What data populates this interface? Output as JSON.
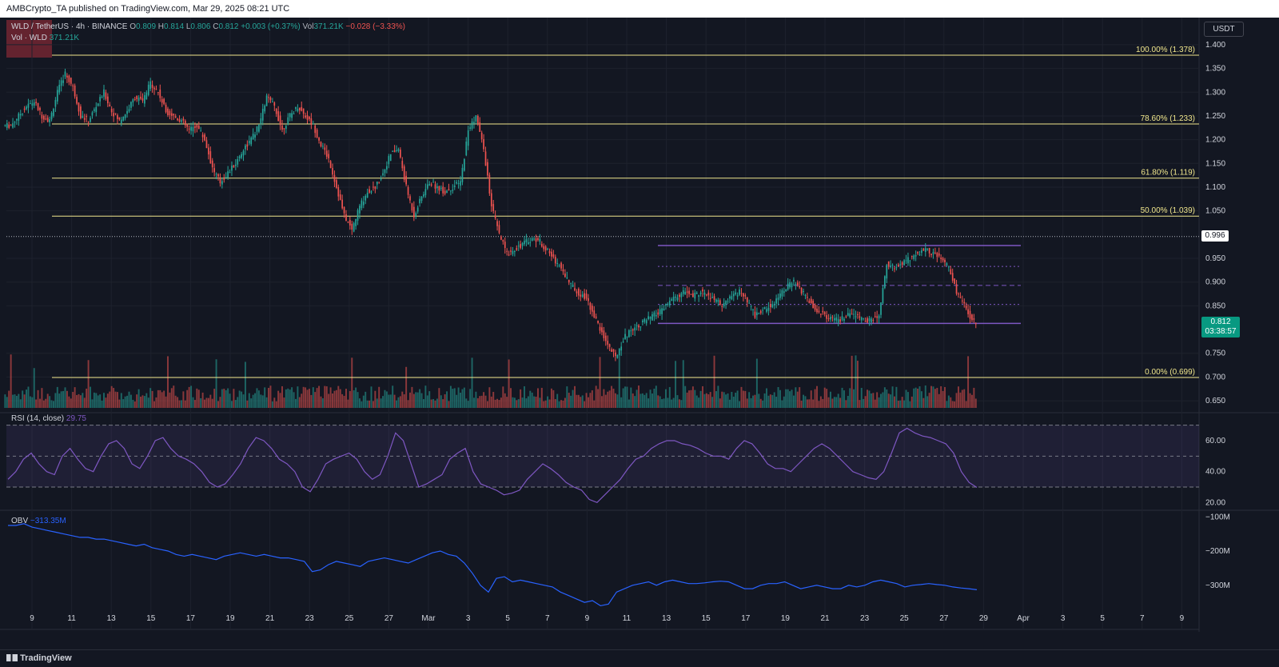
{
  "header": {
    "publisher": "AMBCrypto_TA published on TradingView.com, Mar 29, 2025 08:21 UTC"
  },
  "footer": {
    "brand": "TradingView"
  },
  "symbol_legend": {
    "pair": "WLD / TetherUS · 4h · BINANCE",
    "o_label": "O",
    "o": "0.809",
    "h_label": "H",
    "h": "0.814",
    "l_label": "L",
    "l": "0.806",
    "c_label": "C",
    "c": "0.812",
    "change": "+0.003 (+0.37%)",
    "vol_label": "Vol",
    "vol": "371.21K",
    "vol_change": "−0.028 (−3.33%)",
    "vol_series": "Vol · WLD",
    "vol_series_value": "371.21K"
  },
  "rsi_legend": {
    "name": "RSI (14, close)",
    "value": "29.75"
  },
  "obv_legend": {
    "name": "OBV",
    "value": "−313.35M"
  },
  "currency_badge": "USDT",
  "price_badges": {
    "marker": "0.996",
    "last_price": "0.812",
    "countdown": "03:38:57"
  },
  "colors": {
    "up": "#26a69a",
    "down": "#ef5350",
    "fib": "#f0e68c",
    "channel": "#7e57c2",
    "rsi": "#7e57c2",
    "obv": "#2962ff",
    "background": "#131722"
  },
  "chart_data": {
    "type": "candlestick",
    "x_ticks": [
      "9",
      "11",
      "13",
      "15",
      "17",
      "19",
      "21",
      "23",
      "25",
      "27",
      "Mar",
      "3",
      "5",
      "7",
      "9",
      "11",
      "13",
      "15",
      "17",
      "19",
      "21",
      "23",
      "25",
      "27",
      "29",
      "Apr",
      "3",
      "5",
      "7",
      "9"
    ],
    "price_ticks": [
      "1.400",
      "1.350",
      "1.300",
      "1.250",
      "1.200",
      "1.150",
      "1.100",
      "1.050",
      "0.950",
      "0.900",
      "0.850",
      "0.750",
      "0.700",
      "0.650"
    ],
    "price_range": [
      0.635,
      1.415
    ],
    "fib_levels": [
      {
        "label": "100.00% (1.378)",
        "value": 1.378
      },
      {
        "label": "78.60% (1.233)",
        "value": 1.233
      },
      {
        "label": "61.80% (1.119)",
        "value": 1.119
      },
      {
        "label": "50.00% (1.039)",
        "value": 1.039
      },
      {
        "label": "0.00% (0.699)",
        "value": 0.699
      }
    ],
    "marker_line": 0.996,
    "channel": {
      "top": 0.977,
      "upper_dotted": 0.933,
      "upper_mid": 0.893,
      "lower_dotted": 0.853,
      "bottom": 0.813
    },
    "close_prices": [
      1.23,
      1.25,
      1.27,
      1.28,
      1.25,
      1.24,
      1.3,
      1.34,
      1.31,
      1.25,
      1.24,
      1.27,
      1.3,
      1.26,
      1.24,
      1.26,
      1.29,
      1.28,
      1.32,
      1.3,
      1.26,
      1.25,
      1.24,
      1.22,
      1.23,
      1.2,
      1.14,
      1.11,
      1.13,
      1.15,
      1.18,
      1.2,
      1.23,
      1.29,
      1.27,
      1.22,
      1.25,
      1.27,
      1.25,
      1.23,
      1.19,
      1.16,
      1.1,
      1.04,
      1.01,
      1.06,
      1.09,
      1.1,
      1.13,
      1.17,
      1.18,
      1.1,
      1.04,
      1.08,
      1.11,
      1.1,
      1.09,
      1.1,
      1.11,
      1.22,
      1.25,
      1.18,
      1.06,
      1.0,
      0.96,
      0.97,
      0.98,
      0.99,
      0.99,
      0.97,
      0.95,
      0.93,
      0.9,
      0.88,
      0.87,
      0.84,
      0.8,
      0.77,
      0.74,
      0.78,
      0.8,
      0.81,
      0.82,
      0.83,
      0.84,
      0.86,
      0.87,
      0.88,
      0.87,
      0.88,
      0.87,
      0.86,
      0.85,
      0.87,
      0.88,
      0.86,
      0.83,
      0.84,
      0.85,
      0.87,
      0.89,
      0.9,
      0.88,
      0.86,
      0.84,
      0.83,
      0.82,
      0.82,
      0.83,
      0.83,
      0.82,
      0.82,
      0.83,
      0.94,
      0.93,
      0.94,
      0.95,
      0.96,
      0.97,
      0.96,
      0.95,
      0.93,
      0.88,
      0.85,
      0.82,
      0.812
    ],
    "volume_series": "Vol · WLD",
    "rsi": {
      "name": "RSI (14, close)",
      "ticks": [
        "60.00",
        "40.00",
        "20.00"
      ],
      "range": [
        15,
        75
      ],
      "bands": [
        70,
        50,
        30
      ],
      "values": [
        35,
        40,
        48,
        52,
        45,
        40,
        38,
        50,
        55,
        48,
        42,
        40,
        50,
        58,
        60,
        55,
        45,
        42,
        50,
        60,
        62,
        55,
        50,
        48,
        45,
        40,
        33,
        30,
        32,
        38,
        45,
        55,
        62,
        60,
        55,
        48,
        45,
        40,
        30,
        27,
        35,
        45,
        48,
        50,
        52,
        48,
        40,
        35,
        38,
        50,
        65,
        60,
        45,
        30,
        32,
        35,
        38,
        48,
        52,
        55,
        40,
        32,
        30,
        28,
        25,
        26,
        28,
        35,
        40,
        45,
        42,
        38,
        33,
        30,
        28,
        22,
        20,
        25,
        30,
        35,
        42,
        48,
        50,
        55,
        58,
        60,
        60,
        58,
        57,
        55,
        52,
        50,
        50,
        48,
        55,
        60,
        58,
        52,
        45,
        42,
        42,
        40,
        45,
        50,
        55,
        58,
        55,
        50,
        45,
        40,
        38,
        36,
        35,
        40,
        52,
        65,
        68,
        65,
        63,
        62,
        60,
        58,
        52,
        40,
        33,
        29.75
      ],
      "value_label": "29.75"
    },
    "obv": {
      "name": "OBV",
      "ticks": [
        "−100M",
        "−200M",
        "−300M"
      ],
      "range": [
        -380,
        -90
      ],
      "values": [
        -125,
        -125,
        -120,
        -130,
        -135,
        -140,
        -145,
        -150,
        -155,
        -160,
        -160,
        -165,
        -165,
        -170,
        -175,
        -180,
        -185,
        -180,
        -190,
        -195,
        -200,
        -210,
        -215,
        -210,
        -215,
        -220,
        -225,
        -215,
        -210,
        -205,
        -210,
        -215,
        -210,
        -215,
        -220,
        -220,
        -225,
        -230,
        -260,
        -255,
        -240,
        -230,
        -235,
        -240,
        -245,
        -230,
        -225,
        -220,
        -225,
        -230,
        -235,
        -225,
        -215,
        -205,
        -200,
        -210,
        -215,
        -235,
        -265,
        -300,
        -320,
        -280,
        -275,
        -290,
        -285,
        -290,
        -295,
        -300,
        -305,
        -320,
        -330,
        -340,
        -350,
        -345,
        -360,
        -355,
        -320,
        -310,
        -300,
        -295,
        -290,
        -300,
        -290,
        -285,
        -290,
        -295,
        -295,
        -293,
        -290,
        -288,
        -290,
        -300,
        -310,
        -310,
        -300,
        -295,
        -295,
        -290,
        -300,
        -310,
        -305,
        -300,
        -305,
        -310,
        -310,
        -300,
        -305,
        -300,
        -290,
        -285,
        -290,
        -295,
        -305,
        -300,
        -298,
        -295,
        -298,
        -300,
        -305,
        -308,
        -310,
        -313
      ]
    }
  }
}
